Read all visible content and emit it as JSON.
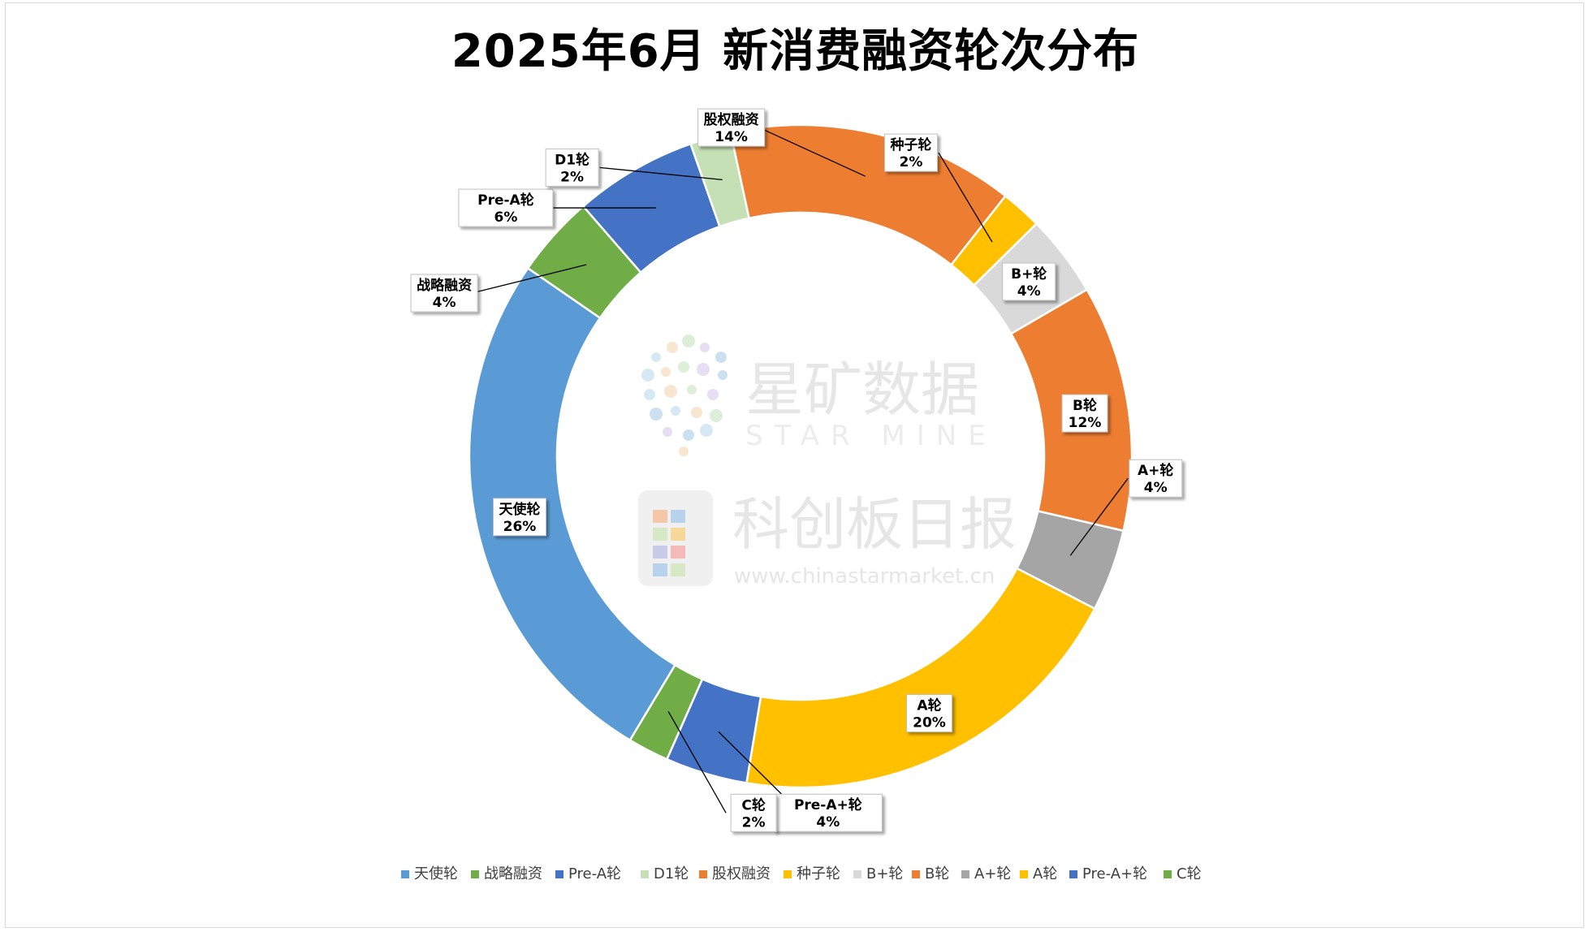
{
  "chart_data": {
    "type": "pie",
    "variant": "doughnut",
    "title": "2025年6月 新消费融资轮次分布",
    "legend_position": "bottom",
    "slices": [
      {
        "label": "天使轮",
        "value": 26,
        "percent_label": "26%",
        "color": "#5b9bd5"
      },
      {
        "label": "战略融资",
        "value": 4,
        "percent_label": "4%",
        "color": "#70ad47"
      },
      {
        "label": "Pre-A轮",
        "value": 6,
        "percent_label": "6%",
        "color": "#4472c4"
      },
      {
        "label": "D1轮",
        "value": 2,
        "percent_label": "2%",
        "color": "#c5e0b4"
      },
      {
        "label": "股权融资",
        "value": 14,
        "percent_label": "14%",
        "color": "#ed7d31"
      },
      {
        "label": "种子轮",
        "value": 2,
        "percent_label": "2%",
        "color": "#ffc000"
      },
      {
        "label": "B+轮",
        "value": 4,
        "percent_label": "4%",
        "color": "#d9d9d9"
      },
      {
        "label": "B轮",
        "value": 12,
        "percent_label": "12%",
        "color": "#ed7d31"
      },
      {
        "label": "A+轮",
        "value": 4,
        "percent_label": "4%",
        "color": "#a5a5a5"
      },
      {
        "label": "A轮",
        "value": 20,
        "percent_label": "20%",
        "color": "#ffc000"
      },
      {
        "label": "Pre-A+轮",
        "value": 4,
        "percent_label": "4%",
        "color": "#4472c4"
      },
      {
        "label": "C轮",
        "value": 2,
        "percent_label": "2%",
        "color": "#70ad47"
      }
    ]
  },
  "watermark": {
    "brand_cn": "星矿数据",
    "brand_en": "STAR MINE",
    "publisher_cn": "科创板日报",
    "publisher_url": "www.chinastarmarket.cn"
  }
}
